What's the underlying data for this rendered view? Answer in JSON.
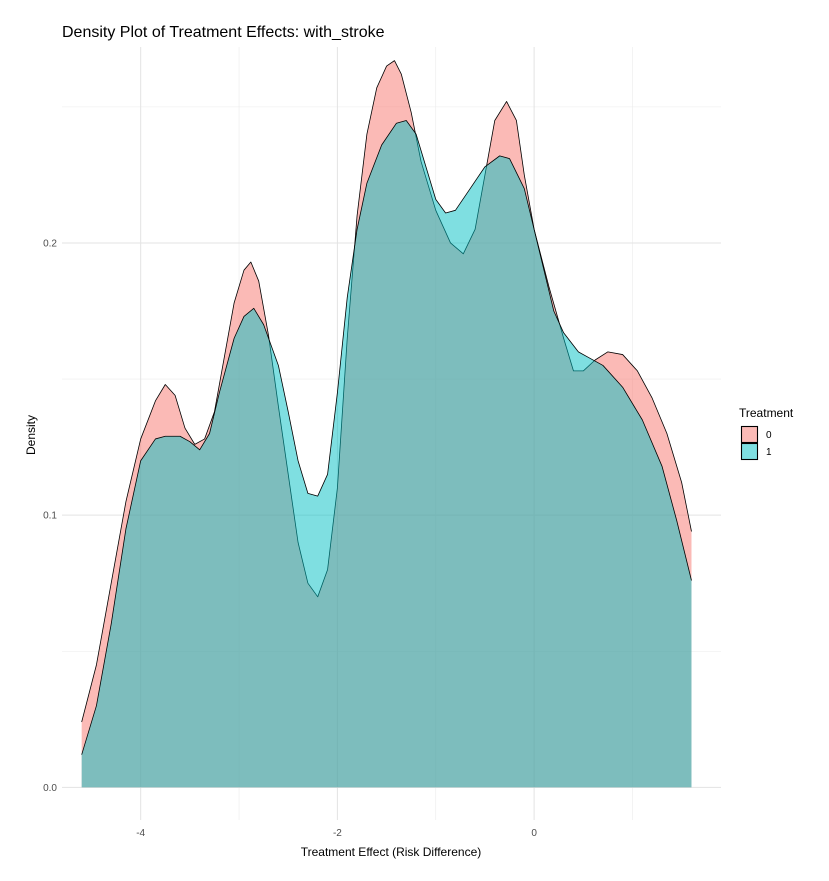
{
  "chart_data": {
    "type": "area",
    "title": "Density Plot of Treatment Effects: with_stroke",
    "xlabel": "Treatment Effect (Risk Difference)",
    "ylabel": "Density",
    "xlim": [
      -4.8,
      1.9
    ],
    "ylim": [
      -0.012,
      0.272
    ],
    "x_ticks": [
      -4,
      -2,
      0
    ],
    "x_tick_labels": [
      "-4",
      "-2",
      "0"
    ],
    "x_minor_ticks": [
      -3,
      -1,
      1
    ],
    "y_ticks": [
      0.0,
      0.1,
      0.2
    ],
    "y_tick_labels": [
      "0.0",
      "0.1",
      "0.2"
    ],
    "y_minor_ticks": [
      0.05,
      0.15,
      0.25
    ],
    "grid": true,
    "legend": {
      "title": "Treatment",
      "position": "right"
    },
    "series": [
      {
        "name": "0",
        "color": "#F8766D",
        "fill_opacity": 0.5,
        "points": [
          [
            -4.6,
            0.024
          ],
          [
            -4.45,
            0.045
          ],
          [
            -4.3,
            0.075
          ],
          [
            -4.15,
            0.105
          ],
          [
            -4.0,
            0.128
          ],
          [
            -3.85,
            0.142
          ],
          [
            -3.75,
            0.148
          ],
          [
            -3.65,
            0.144
          ],
          [
            -3.55,
            0.132
          ],
          [
            -3.45,
            0.126
          ],
          [
            -3.35,
            0.128
          ],
          [
            -3.25,
            0.138
          ],
          [
            -3.15,
            0.158
          ],
          [
            -3.05,
            0.178
          ],
          [
            -2.95,
            0.19
          ],
          [
            -2.88,
            0.193
          ],
          [
            -2.8,
            0.186
          ],
          [
            -2.7,
            0.166
          ],
          [
            -2.6,
            0.14
          ],
          [
            -2.5,
            0.115
          ],
          [
            -2.4,
            0.09
          ],
          [
            -2.3,
            0.075
          ],
          [
            -2.2,
            0.07
          ],
          [
            -2.1,
            0.08
          ],
          [
            -2.0,
            0.11
          ],
          [
            -1.9,
            0.165
          ],
          [
            -1.8,
            0.21
          ],
          [
            -1.7,
            0.24
          ],
          [
            -1.6,
            0.257
          ],
          [
            -1.5,
            0.265
          ],
          [
            -1.42,
            0.267
          ],
          [
            -1.35,
            0.262
          ],
          [
            -1.25,
            0.248
          ],
          [
            -1.15,
            0.23
          ],
          [
            -1.0,
            0.212
          ],
          [
            -0.85,
            0.2
          ],
          [
            -0.72,
            0.196
          ],
          [
            -0.6,
            0.205
          ],
          [
            -0.5,
            0.225
          ],
          [
            -0.4,
            0.245
          ],
          [
            -0.28,
            0.252
          ],
          [
            -0.18,
            0.245
          ],
          [
            -0.1,
            0.225
          ],
          [
            0.0,
            0.205
          ],
          [
            0.15,
            0.184
          ],
          [
            0.3,
            0.165
          ],
          [
            0.4,
            0.153
          ],
          [
            0.5,
            0.153
          ],
          [
            0.62,
            0.157
          ],
          [
            0.75,
            0.16
          ],
          [
            0.9,
            0.159
          ],
          [
            1.05,
            0.153
          ],
          [
            1.2,
            0.143
          ],
          [
            1.35,
            0.13
          ],
          [
            1.5,
            0.112
          ],
          [
            1.6,
            0.094
          ]
        ]
      },
      {
        "name": "1",
        "color": "#00BFC4",
        "fill_opacity": 0.5,
        "points": [
          [
            -4.6,
            0.012
          ],
          [
            -4.45,
            0.03
          ],
          [
            -4.3,
            0.06
          ],
          [
            -4.15,
            0.095
          ],
          [
            -4.0,
            0.12
          ],
          [
            -3.85,
            0.128
          ],
          [
            -3.75,
            0.129
          ],
          [
            -3.6,
            0.129
          ],
          [
            -3.5,
            0.127
          ],
          [
            -3.4,
            0.124
          ],
          [
            -3.3,
            0.13
          ],
          [
            -3.2,
            0.145
          ],
          [
            -3.05,
            0.165
          ],
          [
            -2.95,
            0.173
          ],
          [
            -2.85,
            0.176
          ],
          [
            -2.75,
            0.17
          ],
          [
            -2.6,
            0.155
          ],
          [
            -2.5,
            0.138
          ],
          [
            -2.4,
            0.12
          ],
          [
            -2.3,
            0.108
          ],
          [
            -2.2,
            0.107
          ],
          [
            -2.1,
            0.115
          ],
          [
            -2.0,
            0.145
          ],
          [
            -1.9,
            0.18
          ],
          [
            -1.8,
            0.205
          ],
          [
            -1.7,
            0.222
          ],
          [
            -1.55,
            0.236
          ],
          [
            -1.4,
            0.244
          ],
          [
            -1.3,
            0.245
          ],
          [
            -1.2,
            0.24
          ],
          [
            -1.1,
            0.228
          ],
          [
            -1.0,
            0.216
          ],
          [
            -0.9,
            0.211
          ],
          [
            -0.8,
            0.212
          ],
          [
            -0.65,
            0.22
          ],
          [
            -0.5,
            0.228
          ],
          [
            -0.35,
            0.232
          ],
          [
            -0.25,
            0.231
          ],
          [
            -0.1,
            0.22
          ],
          [
            0.0,
            0.205
          ],
          [
            0.1,
            0.19
          ],
          [
            0.2,
            0.175
          ],
          [
            0.3,
            0.167
          ],
          [
            0.45,
            0.16
          ],
          [
            0.55,
            0.158
          ],
          [
            0.7,
            0.155
          ],
          [
            0.9,
            0.147
          ],
          [
            1.1,
            0.135
          ],
          [
            1.3,
            0.118
          ],
          [
            1.45,
            0.098
          ],
          [
            1.6,
            0.076
          ]
        ]
      }
    ]
  }
}
